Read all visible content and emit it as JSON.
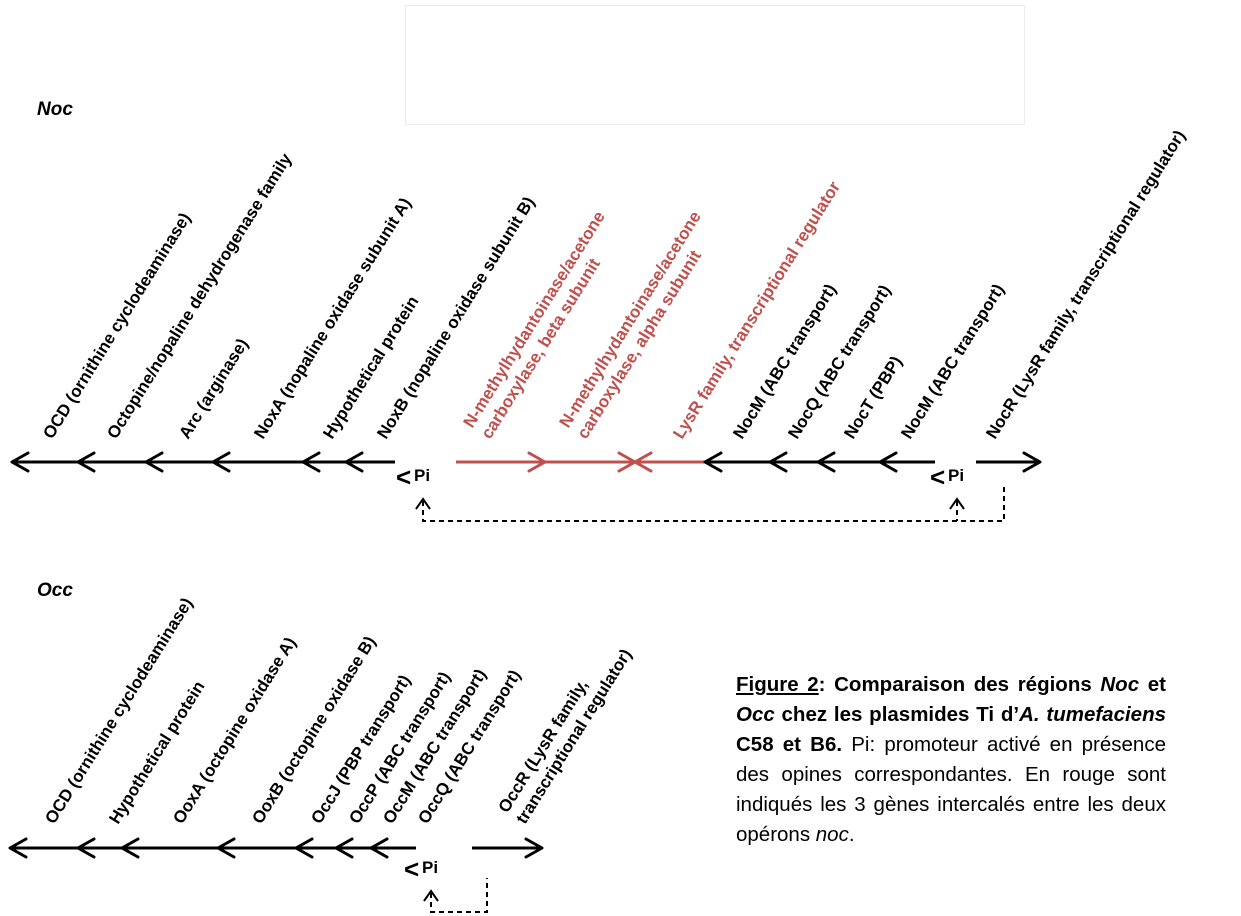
{
  "noc": {
    "title": "Noc",
    "genes": [
      {
        "label": "OCD (ornithine cyclodeaminase)",
        "color": "black"
      },
      {
        "label": "Octopine/nopaline dehydrogenase family",
        "color": "black"
      },
      {
        "label": "Arc (arginase)",
        "color": "black"
      },
      {
        "label": "NoxA (nopaline oxidase subunit A)",
        "color": "black"
      },
      {
        "label": "Hypothetical protein",
        "color": "black"
      },
      {
        "label": "NoxB (nopaline oxidase subunit B)",
        "color": "black"
      },
      {
        "label": [
          "N-methylhydantoinase/acetone",
          "carboxylase, beta subunit"
        ],
        "color": "red"
      },
      {
        "label": [
          "N-methylhydantoinase/acetone",
          "carboxylase, alpha subunit"
        ],
        "color": "red"
      },
      {
        "label": "LysR family, transcriptional regulator",
        "color": "red"
      },
      {
        "label": "NocM (ABC transport)",
        "color": "black"
      },
      {
        "label": "NocQ (ABC transport)",
        "color": "black"
      },
      {
        "label": "NocT (PBP)",
        "color": "black"
      },
      {
        "label": "NocM (ABC transport)",
        "color": "black"
      },
      {
        "label": "NocR (LysR family, transcriptional regulator)",
        "color": "black"
      }
    ],
    "promoters": [
      "Pi",
      "Pi"
    ]
  },
  "occ": {
    "title": "Occ",
    "genes": [
      {
        "label": "OCD (ornithine cyclodeaminase)",
        "color": "black"
      },
      {
        "label": "Hypothetical protein",
        "color": "black"
      },
      {
        "label": "OoxA (octopine oxidase A)",
        "color": "black"
      },
      {
        "label": "OoxB (octopine oxidase B)",
        "color": "black"
      },
      {
        "label": "OccJ (PBP transport)",
        "color": "black"
      },
      {
        "label": "OccP (ABC transport)",
        "color": "black"
      },
      {
        "label": "OccM (ABC transport)",
        "color": "black"
      },
      {
        "label": "OccQ (ABC transport)",
        "color": "black"
      },
      {
        "label": [
          "OccR (LysR family,",
          "transcriptional regulator)"
        ],
        "color": "black"
      }
    ],
    "promoters": [
      "Pi"
    ]
  },
  "colors": {
    "black": "#000000",
    "red": "#c0504d"
  },
  "caption": {
    "figure_label": "Figure 2",
    "bold_part_1": ": Comparaison des régions ",
    "noc_italic": "Noc",
    "et": " et ",
    "occ_italic": "Occ",
    "bold_part_2": " chez les plasmides Ti d’",
    "a_italic": "A. tumefaciens",
    "bold_part_3": " C58 et B6.",
    "body_1": " Pi: promoteur activé en présence des opines correspondantes. En rouge sont indiqués les 3 gènes intercalés entre les deux opérons ",
    "noc_lower_italic": "noc",
    "body_end": "."
  }
}
